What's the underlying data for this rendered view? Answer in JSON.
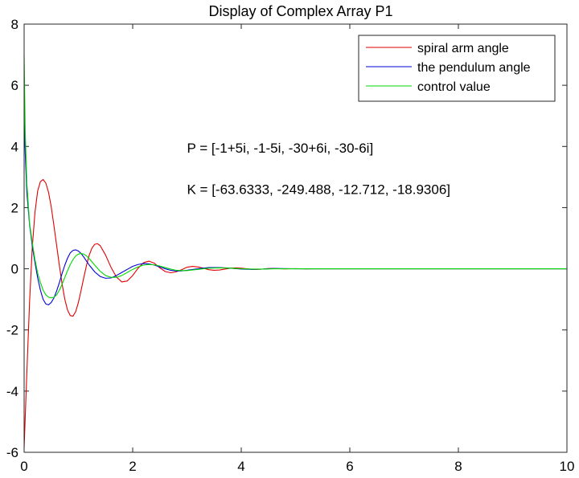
{
  "chart_data": {
    "type": "line",
    "title": "Display of Complex Array P1",
    "xlabel": "",
    "ylabel": "",
    "xlim": [
      0,
      10
    ],
    "ylim": [
      -6,
      8
    ],
    "x_ticks": [
      0,
      2,
      4,
      6,
      8,
      10
    ],
    "y_ticks": [
      -6,
      -4,
      -2,
      0,
      2,
      4,
      6,
      8
    ],
    "x_tick_labels": [
      "0",
      "2",
      "4",
      "6",
      "8",
      "10"
    ],
    "y_tick_labels": [
      "-6",
      "-4",
      "-2",
      "0",
      "2",
      "4",
      "6",
      "8"
    ],
    "grid": false,
    "legend_position": "top-right",
    "annotations": [
      {
        "text": "P = [-1+5i, -1-5i, -30+6i, -30-6i]",
        "x": 3.0,
        "y": 3.8
      },
      {
        "text": "K = [-63.6333, -249.488, -12.712, -18.9306]",
        "x": 3.0,
        "y": 2.45
      }
    ],
    "series": [
      {
        "name": "spiral arm angle",
        "color": "#e00000",
        "x": [
          0,
          0.05,
          0.1,
          0.15,
          0.2,
          0.25,
          0.3,
          0.35,
          0.4,
          0.45,
          0.5,
          0.55,
          0.6,
          0.65,
          0.7,
          0.75,
          0.8,
          0.85,
          0.9,
          0.95,
          1,
          1.05,
          1.1,
          1.15,
          1.2,
          1.25,
          1.3,
          1.35,
          1.4,
          1.5,
          1.6,
          1.7,
          1.8,
          1.9,
          2,
          2.1,
          2.2,
          2.3,
          2.4,
          2.5,
          2.6,
          2.7,
          2.8,
          2.9,
          3,
          3.1,
          3.2,
          3.3,
          3.4,
          3.5,
          3.6,
          3.7,
          3.8,
          3.9,
          4,
          4.1,
          4.2,
          4.3,
          4.4,
          4.5,
          4.6,
          4.8,
          5,
          5.2,
          5.4,
          5.6,
          5.8,
          6,
          6.5,
          7,
          8,
          9,
          10
        ],
        "values": [
          -5.85,
          -3.4,
          -1.1,
          0.7,
          1.85,
          2.55,
          2.85,
          2.92,
          2.8,
          2.5,
          2.02,
          1.4,
          0.75,
          0.1,
          -0.5,
          -1.0,
          -1.35,
          -1.53,
          -1.55,
          -1.4,
          -1.1,
          -0.7,
          -0.28,
          0.12,
          0.45,
          0.68,
          0.8,
          0.82,
          0.76,
          0.45,
          0.05,
          -0.27,
          -0.43,
          -0.4,
          -0.22,
          0.02,
          0.2,
          0.25,
          0.18,
          0.03,
          -0.09,
          -0.13,
          -0.1,
          -0.03,
          0.05,
          0.08,
          0.06,
          0.02,
          -0.03,
          -0.05,
          -0.04,
          -0.01,
          0.02,
          0.03,
          0.02,
          0,
          -0.02,
          -0.02,
          -0.01,
          0.01,
          0.01,
          -0.005,
          0.005,
          -0.003,
          0.002,
          -0.001,
          0.001,
          0,
          0,
          0,
          0,
          0,
          0
        ]
      },
      {
        "name": "the pendulum angle",
        "color": "#0000d8",
        "x": [
          0,
          0.02,
          0.05,
          0.1,
          0.15,
          0.2,
          0.25,
          0.3,
          0.35,
          0.4,
          0.45,
          0.5,
          0.55,
          0.6,
          0.65,
          0.7,
          0.75,
          0.8,
          0.85,
          0.9,
          0.95,
          1,
          1.05,
          1.1,
          1.15,
          1.2,
          1.3,
          1.4,
          1.5,
          1.6,
          1.7,
          1.8,
          1.9,
          2,
          2.1,
          2.2,
          2.3,
          2.4,
          2.5,
          2.6,
          2.7,
          2.8,
          2.9,
          3,
          3.2,
          3.4,
          3.6,
          3.8,
          4,
          4.2,
          4.4,
          4.6,
          5,
          5.5,
          6,
          7,
          8,
          10
        ],
        "values": [
          5.0,
          3.8,
          2.5,
          1.45,
          0.75,
          0.2,
          -0.3,
          -0.7,
          -1.0,
          -1.15,
          -1.18,
          -1.1,
          -0.95,
          -0.72,
          -0.45,
          -0.15,
          0.12,
          0.35,
          0.52,
          0.6,
          0.62,
          0.58,
          0.5,
          0.38,
          0.25,
          0.12,
          -0.1,
          -0.25,
          -0.31,
          -0.3,
          -0.22,
          -0.12,
          -0.02,
          0.08,
          0.14,
          0.17,
          0.16,
          0.12,
          0.06,
          0.0,
          -0.05,
          -0.07,
          -0.07,
          -0.05,
          0.0,
          0.04,
          0.04,
          0.02,
          -0.01,
          -0.02,
          -0.01,
          0.01,
          0.0,
          0.0,
          0.0,
          0.0,
          0.0,
          0.0
        ]
      },
      {
        "name": "control value",
        "color": "#00d800",
        "x": [
          0,
          0.02,
          0.05,
          0.1,
          0.15,
          0.2,
          0.25,
          0.3,
          0.35,
          0.4,
          0.45,
          0.5,
          0.55,
          0.6,
          0.65,
          0.7,
          0.75,
          0.8,
          0.85,
          0.9,
          0.95,
          1,
          1.05,
          1.1,
          1.15,
          1.2,
          1.3,
          1.4,
          1.5,
          1.6,
          1.7,
          1.8,
          1.9,
          2,
          2.1,
          2.2,
          2.3,
          2.4,
          2.5,
          2.6,
          2.7,
          2.8,
          2.9,
          3,
          3.2,
          3.4,
          3.6,
          3.8,
          4,
          4.2,
          4.4,
          4.6,
          5,
          5.5,
          6,
          7,
          8,
          10
        ],
        "values": [
          7.0,
          4.5,
          2.8,
          1.5,
          0.85,
          0.3,
          -0.15,
          -0.45,
          -0.7,
          -0.85,
          -0.93,
          -0.95,
          -0.93,
          -0.85,
          -0.7,
          -0.5,
          -0.28,
          -0.06,
          0.14,
          0.3,
          0.42,
          0.48,
          0.5,
          0.48,
          0.42,
          0.33,
          0.12,
          -0.08,
          -0.22,
          -0.28,
          -0.28,
          -0.22,
          -0.12,
          -0.02,
          0.06,
          0.12,
          0.14,
          0.13,
          0.09,
          0.04,
          -0.01,
          -0.05,
          -0.06,
          -0.06,
          -0.02,
          0.02,
          0.03,
          0.02,
          0.0,
          -0.01,
          -0.01,
          0.0,
          0.0,
          0.0,
          0.0,
          0.0,
          0.0,
          0.0
        ]
      }
    ]
  }
}
